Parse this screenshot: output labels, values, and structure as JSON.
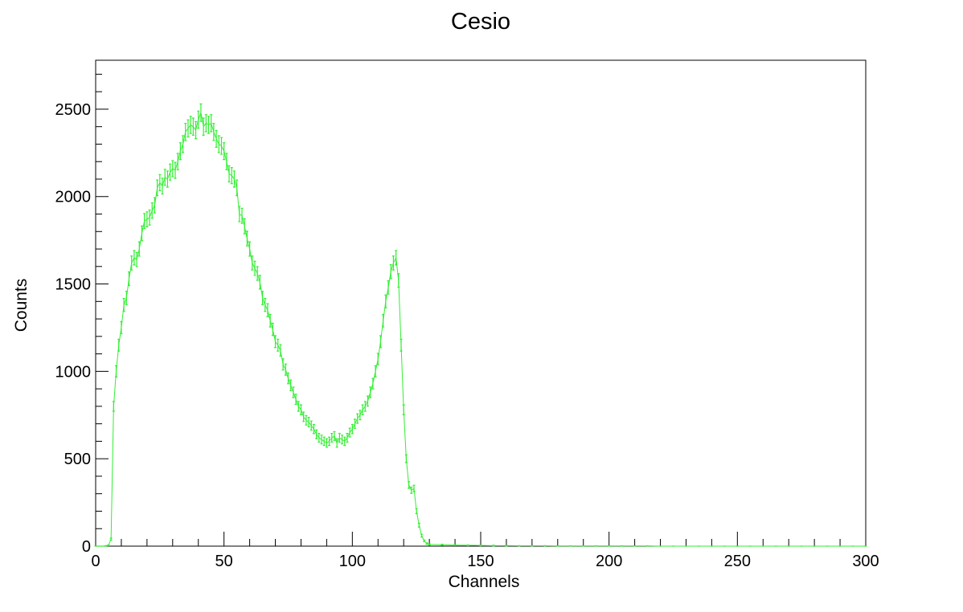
{
  "chart_data": {
    "type": "line",
    "title": "Cesio",
    "xlabel": "Channels",
    "ylabel": "Counts",
    "color": "#33ee33",
    "x": [
      0,
      1,
      2,
      3,
      4,
      5,
      6,
      7,
      8,
      9,
      10,
      11,
      12,
      13,
      14,
      15,
      16,
      17,
      18,
      19,
      20,
      21,
      22,
      23,
      24,
      25,
      26,
      27,
      28,
      29,
      30,
      31,
      32,
      33,
      34,
      35,
      36,
      37,
      38,
      39,
      40,
      41,
      42,
      43,
      44,
      45,
      46,
      47,
      48,
      49,
      50,
      51,
      52,
      53,
      54,
      55,
      56,
      57,
      58,
      59,
      60,
      61,
      62,
      63,
      64,
      65,
      66,
      67,
      68,
      69,
      70,
      71,
      72,
      73,
      74,
      75,
      76,
      77,
      78,
      79,
      80,
      81,
      82,
      83,
      84,
      85,
      86,
      87,
      88,
      89,
      90,
      91,
      92,
      93,
      94,
      95,
      96,
      97,
      98,
      99,
      100,
      101,
      102,
      103,
      104,
      105,
      106,
      107,
      108,
      109,
      110,
      111,
      112,
      113,
      114,
      115,
      116,
      117,
      118,
      119,
      120,
      121,
      122,
      123,
      124,
      125,
      126,
      127,
      128,
      129,
      130,
      135,
      140,
      145,
      150,
      155,
      160,
      165,
      170,
      175,
      180,
      185,
      190,
      195,
      200,
      205,
      210,
      215,
      220,
      225,
      230,
      235,
      240,
      245,
      250,
      255,
      260,
      265,
      270,
      275,
      280,
      285,
      290,
      295,
      300
    ],
    "values": [
      0,
      0,
      0,
      0,
      2,
      5,
      40,
      800,
      1000,
      1150,
      1250,
      1380,
      1420,
      1530,
      1620,
      1650,
      1640,
      1700,
      1790,
      1860,
      1870,
      1880,
      1920,
      1950,
      2050,
      2080,
      2060,
      2110,
      2100,
      2140,
      2160,
      2150,
      2200,
      2260,
      2300,
      2370,
      2390,
      2410,
      2400,
      2380,
      2440,
      2480,
      2400,
      2420,
      2410,
      2420,
      2370,
      2330,
      2300,
      2290,
      2260,
      2200,
      2130,
      2120,
      2100,
      2050,
      1900,
      1890,
      1830,
      1760,
      1700,
      1620,
      1590,
      1560,
      1510,
      1420,
      1380,
      1350,
      1290,
      1240,
      1170,
      1150,
      1120,
      1040,
      1010,
      960,
      920,
      880,
      840,
      800,
      780,
      740,
      720,
      710,
      690,
      670,
      640,
      620,
      610,
      600,
      590,
      600,
      620,
      630,
      590,
      620,
      610,
      600,
      620,
      650,
      670,
      700,
      730,
      750,
      780,
      800,
      830,
      880,
      930,
      1000,
      1070,
      1170,
      1290,
      1400,
      1480,
      1570,
      1620,
      1650,
      1520,
      1150,
      780,
      500,
      350,
      320,
      330,
      200,
      120,
      60,
      30,
      15,
      10,
      8,
      6,
      5,
      4,
      3,
      3,
      2,
      2,
      2,
      1,
      1,
      1,
      1,
      1,
      1,
      1,
      1,
      0,
      0,
      0,
      0,
      0,
      0,
      0,
      0,
      0,
      0,
      0,
      0,
      0,
      0,
      0,
      0,
      0
    ],
    "errors": [
      0,
      0,
      0,
      0,
      1,
      2,
      6,
      28,
      32,
      34,
      35,
      37,
      38,
      39,
      40,
      41,
      40,
      41,
      42,
      43,
      43,
      43,
      44,
      44,
      45,
      46,
      45,
      46,
      46,
      46,
      46,
      46,
      47,
      48,
      48,
      49,
      49,
      49,
      49,
      49,
      49,
      50,
      49,
      49,
      49,
      49,
      49,
      48,
      48,
      48,
      48,
      47,
      46,
      46,
      46,
      45,
      44,
      43,
      43,
      42,
      41,
      40,
      40,
      39,
      39,
      38,
      37,
      37,
      36,
      35,
      34,
      34,
      33,
      32,
      32,
      31,
      30,
      30,
      29,
      28,
      28,
      27,
      27,
      27,
      26,
      26,
      25,
      25,
      25,
      24,
      24,
      24,
      25,
      25,
      24,
      25,
      25,
      24,
      25,
      25,
      26,
      26,
      27,
      27,
      28,
      28,
      29,
      30,
      30,
      32,
      33,
      34,
      36,
      37,
      38,
      40,
      40,
      41,
      39,
      34,
      28,
      22,
      19,
      18,
      18,
      14,
      11,
      8,
      5,
      4,
      3,
      3,
      2,
      2,
      2,
      2,
      2,
      1,
      1,
      1,
      1,
      1,
      1,
      1,
      1,
      1,
      1,
      1,
      0,
      0,
      0,
      0,
      0,
      0,
      0,
      0,
      0,
      0,
      0,
      0,
      0,
      0,
      0,
      0,
      0
    ],
    "xlim": [
      0,
      300
    ],
    "ylim": [
      0,
      2780
    ],
    "xticks": [
      0,
      50,
      100,
      150,
      200,
      250,
      300
    ],
    "yticks": [
      0,
      500,
      1000,
      1500,
      2000,
      2500
    ]
  }
}
